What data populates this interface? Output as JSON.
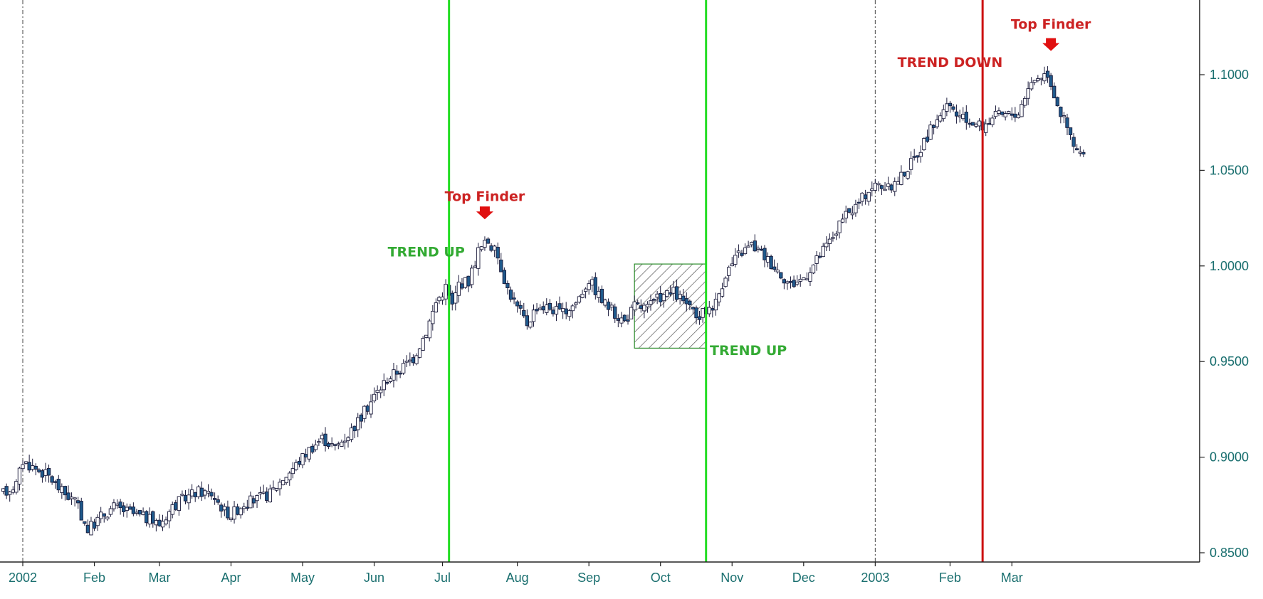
{
  "chart_data": {
    "type": "candlestick",
    "x_unit": "trading day (approx. 2002-01 to 2003-03)",
    "ylim": [
      0.845,
      1.13
    ],
    "y_ticks": [
      "0.8500",
      "0.9000",
      "0.9500",
      "1.0000",
      "1.0500",
      "1.1000"
    ],
    "x_ticks": [
      {
        "label": "2002",
        "day": 0
      },
      {
        "label": "Feb",
        "day": 22
      },
      {
        "label": "Mar",
        "day": 42
      },
      {
        "label": "Apr",
        "day": 64
      },
      {
        "label": "May",
        "day": 86
      },
      {
        "label": "Jun",
        "day": 108
      },
      {
        "label": "Jul",
        "day": 129
      },
      {
        "label": "Aug",
        "day": 152
      },
      {
        "label": "Sep",
        "day": 174
      },
      {
        "label": "Oct",
        "day": 196
      },
      {
        "label": "Nov",
        "day": 218
      },
      {
        "label": "Dec",
        "day": 240
      },
      {
        "label": "2003",
        "day": 262
      },
      {
        "label": "Feb",
        "day": 285
      },
      {
        "label": "Mar",
        "day": 304
      }
    ],
    "year_separators": [
      0,
      262
    ],
    "trend_lines": [
      {
        "day": 131,
        "color": "#22dd22"
      },
      {
        "day": 210,
        "color": "#22dd22"
      },
      {
        "day": 295,
        "color": "#cc1111"
      }
    ],
    "hatched_box": {
      "day_start": 188,
      "day_end": 210,
      "y_low": 0.957,
      "y_high": 1.001
    },
    "annotations": [
      {
        "text": "TREND UP",
        "day": 124,
        "y": 1.005,
        "color": "#33aa33"
      },
      {
        "text": "Top Finder",
        "day": 142,
        "y": 1.034,
        "color": "#cc2222"
      },
      {
        "text": "TREND UP",
        "day": 223,
        "y": 0.9535,
        "color": "#33aa33"
      },
      {
        "text": "TREND DOWN",
        "day": 285,
        "y": 1.104,
        "color": "#cc2222"
      },
      {
        "text": "Top Finder",
        "day": 316,
        "y": 1.124,
        "color": "#cc2222"
      }
    ],
    "arrows": [
      {
        "day": 142,
        "y": 1.027,
        "color": "#e01010"
      },
      {
        "day": 316,
        "y": 1.115,
        "color": "#e01010"
      }
    ],
    "anchors": [
      [
        -6,
        0.881
      ],
      [
        -2,
        0.886
      ],
      [
        0,
        0.898
      ],
      [
        3,
        0.895
      ],
      [
        8,
        0.89
      ],
      [
        12,
        0.882
      ],
      [
        16,
        0.877
      ],
      [
        20,
        0.862
      ],
      [
        24,
        0.869
      ],
      [
        28,
        0.874
      ],
      [
        33,
        0.871
      ],
      [
        38,
        0.868
      ],
      [
        42,
        0.865
      ],
      [
        46,
        0.874
      ],
      [
        50,
        0.879
      ],
      [
        54,
        0.882
      ],
      [
        58,
        0.881
      ],
      [
        62,
        0.872
      ],
      [
        64,
        0.87
      ],
      [
        68,
        0.876
      ],
      [
        72,
        0.878
      ],
      [
        76,
        0.881
      ],
      [
        80,
        0.889
      ],
      [
        84,
        0.896
      ],
      [
        88,
        0.904
      ],
      [
        92,
        0.91
      ],
      [
        96,
        0.905
      ],
      [
        100,
        0.912
      ],
      [
        104,
        0.921
      ],
      [
        108,
        0.932
      ],
      [
        112,
        0.941
      ],
      [
        116,
        0.946
      ],
      [
        120,
        0.952
      ],
      [
        124,
        0.966
      ],
      [
        127,
        0.981
      ],
      [
        130,
        0.989
      ],
      [
        132,
        0.979
      ],
      [
        134,
        0.991
      ],
      [
        137,
        0.992
      ],
      [
        140,
        1.008
      ],
      [
        143,
        1.013
      ],
      [
        146,
        1.005
      ],
      [
        149,
        0.988
      ],
      [
        152,
        0.978
      ],
      [
        155,
        0.97
      ],
      [
        158,
        0.979
      ],
      [
        162,
        0.978
      ],
      [
        166,
        0.975
      ],
      [
        170,
        0.981
      ],
      [
        174,
        0.993
      ],
      [
        178,
        0.982
      ],
      [
        182,
        0.975
      ],
      [
        185,
        0.971
      ],
      [
        188,
        0.979
      ],
      [
        192,
        0.978
      ],
      [
        196,
        0.984
      ],
      [
        200,
        0.986
      ],
      [
        204,
        0.98
      ],
      [
        207,
        0.972
      ],
      [
        210,
        0.977
      ],
      [
        213,
        0.981
      ],
      [
        216,
        0.996
      ],
      [
        220,
        1.006
      ],
      [
        224,
        1.011
      ],
      [
        228,
        1.005
      ],
      [
        232,
        0.998
      ],
      [
        236,
        0.99
      ],
      [
        240,
        0.994
      ],
      [
        244,
        1.003
      ],
      [
        248,
        1.013
      ],
      [
        252,
        1.024
      ],
      [
        256,
        1.031
      ],
      [
        260,
        1.04
      ],
      [
        263,
        1.043
      ],
      [
        266,
        1.04
      ],
      [
        270,
        1.047
      ],
      [
        274,
        1.056
      ],
      [
        278,
        1.068
      ],
      [
        282,
        1.08
      ],
      [
        285,
        1.083
      ],
      [
        288,
        1.077
      ],
      [
        292,
        1.075
      ],
      [
        295,
        1.073
      ],
      [
        298,
        1.078
      ],
      [
        302,
        1.079
      ],
      [
        306,
        1.08
      ],
      [
        309,
        1.094
      ],
      [
        312,
        1.099
      ],
      [
        315,
        1.101
      ],
      [
        317,
        1.09
      ],
      [
        319,
        1.08
      ],
      [
        321,
        1.072
      ],
      [
        323,
        1.062
      ],
      [
        326,
        1.057
      ]
    ]
  }
}
